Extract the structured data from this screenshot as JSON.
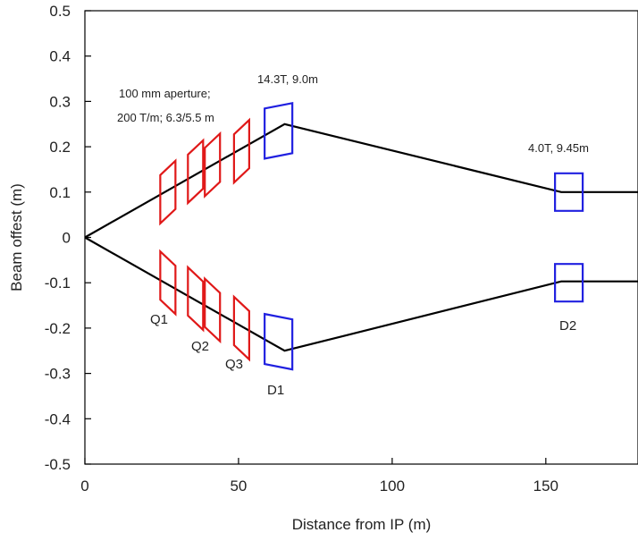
{
  "chart_data": {
    "type": "line",
    "title": "",
    "xlabel": "Distance from IP (m)",
    "ylabel": "Beam offest (m)",
    "xlim": [
      0,
      180
    ],
    "ylim": [
      -0.5,
      0.5
    ],
    "xticks": [
      0,
      50,
      100,
      150
    ],
    "xtick_labels": [
      "0",
      "50",
      "100",
      "150"
    ],
    "yticks": [
      0.5,
      0.4,
      0.3,
      0.2,
      0.1,
      0,
      -0.1,
      -0.2,
      -0.3,
      -0.4,
      -0.5
    ],
    "ytick_labels": [
      "0.5",
      "0.4",
      "0.3",
      "0.2",
      "0.1",
      "0",
      "-0.1",
      "-0.2",
      "-0.3",
      "-0.4",
      "-0.5"
    ],
    "grid": false,
    "series": [
      {
        "values": [
          [
            0,
            0
          ],
          [
            65,
            0.25
          ],
          [
            155,
            0.1
          ],
          [
            180,
            0.1
          ]
        ],
        "color": "#000000"
      },
      {
        "values": [
          [
            0,
            0
          ],
          [
            65,
            -0.25
          ],
          [
            155,
            -0.097
          ],
          [
            180,
            -0.097
          ]
        ],
        "color": "#000000"
      }
    ],
    "magnets": [
      {
        "type": "quad",
        "x": 27,
        "y": 0.1,
        "color": "#e01818"
      },
      {
        "type": "quad",
        "x": 36,
        "y": 0.145,
        "color": "#e01818"
      },
      {
        "type": "quad",
        "x": 41.5,
        "y": 0.16,
        "color": "#e01818"
      },
      {
        "type": "quad",
        "x": 51,
        "y": 0.19,
        "color": "#e01818"
      },
      {
        "type": "quad",
        "x": 27,
        "y": -0.1,
        "color": "#e01818"
      },
      {
        "type": "quad",
        "x": 36,
        "y": -0.135,
        "color": "#e01818"
      },
      {
        "type": "quad",
        "x": 41.5,
        "y": -0.16,
        "color": "#e01818"
      },
      {
        "type": "quad",
        "x": 51,
        "y": -0.2,
        "color": "#e01818"
      },
      {
        "type": "dipole",
        "x": 63,
        "y": 0.235,
        "color": "#2020e0"
      },
      {
        "type": "dipole",
        "x": 63,
        "y": -0.23,
        "color": "#2020e0"
      },
      {
        "type": "dipole",
        "x": 157.5,
        "y": 0.1,
        "color": "#2020e0"
      },
      {
        "type": "dipole",
        "x": 157.5,
        "y": -0.1,
        "color": "#2020e0"
      }
    ],
    "annotations": {
      "aperture_line1": "100 mm aperture;",
      "aperture_line2": "200 T/m; 6.3/5.5 m",
      "d1_spec": "14.3T, 9.0m",
      "d2_spec": "4.0T, 9.45m",
      "q1": "Q1",
      "q2": "Q2",
      "q3": "Q3",
      "d1": "D1",
      "d2": "D2"
    }
  }
}
